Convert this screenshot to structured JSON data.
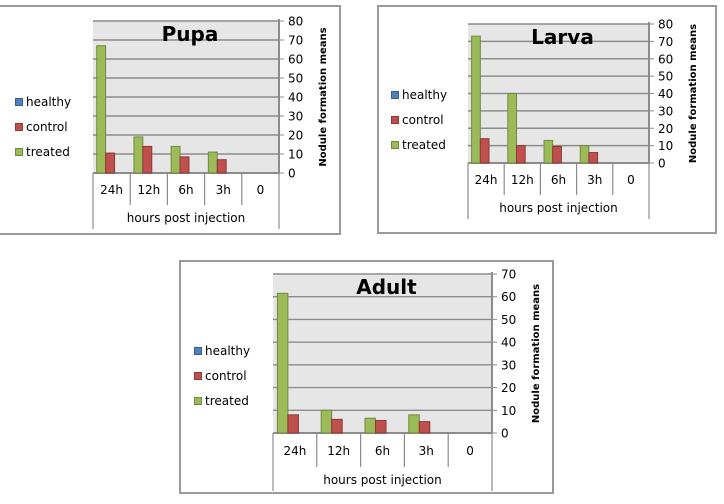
{
  "chart_data": [
    {
      "id": "pupa",
      "type": "bar",
      "title": "Pupa",
      "xlabel": "hours post injection",
      "ylabel": "Nodule formation means",
      "categories": [
        "24h",
        "12h",
        "6h",
        "3h",
        "0"
      ],
      "ylim": [
        0,
        80
      ],
      "yticks": [
        0,
        10,
        20,
        30,
        40,
        50,
        60,
        70,
        80
      ],
      "ytick_labels": [
        "0",
        "10",
        "20",
        "30",
        "40",
        "50",
        "60",
        "70",
        "80"
      ],
      "y_axis_side": "right",
      "grid": true,
      "legend_position": "left",
      "series": [
        {
          "name": "healthy",
          "color": "#4f81bd",
          "values": [
            0,
            0,
            0,
            0,
            0
          ]
        },
        {
          "name": "treated",
          "color": "#9bbb59",
          "values": [
            67,
            19,
            14,
            11,
            0
          ]
        },
        {
          "name": "control",
          "color": "#c0504d",
          "values": [
            10.5,
            14,
            8.5,
            7,
            0
          ]
        }
      ]
    },
    {
      "id": "larva",
      "type": "bar",
      "title": "Larva",
      "xlabel": "hours post injection",
      "ylabel": "Nodule formation means",
      "categories": [
        "24h",
        "12h",
        "6h",
        "3h",
        "0"
      ],
      "ylim": [
        0,
        80
      ],
      "yticks": [
        0,
        10,
        20,
        30,
        40,
        50,
        60,
        70,
        80
      ],
      "ytick_labels": [
        "0",
        "10",
        "20",
        "30",
        "40",
        "50",
        "60",
        "70",
        "80"
      ],
      "y_axis_side": "right",
      "grid": true,
      "legend_position": "left",
      "series": [
        {
          "name": "healthy",
          "color": "#4f81bd",
          "values": [
            0,
            0,
            0,
            0,
            0
          ]
        },
        {
          "name": "treated",
          "color": "#9bbb59",
          "values": [
            73,
            40,
            13,
            10,
            0
          ]
        },
        {
          "name": "control",
          "color": "#c0504d",
          "values": [
            14,
            10,
            9.5,
            6,
            0
          ]
        }
      ]
    },
    {
      "id": "adult",
      "type": "bar",
      "title": "Adult",
      "xlabel": "hours post injection",
      "ylabel": "Nodule formation means",
      "categories": [
        "24h",
        "12h",
        "6h",
        "3h",
        "0"
      ],
      "ylim": [
        0,
        70
      ],
      "yticks": [
        0,
        10,
        20,
        30,
        40,
        50,
        60,
        70
      ],
      "ytick_labels": [
        "0",
        "10",
        "20",
        "30",
        "40",
        "50",
        "60",
        "70"
      ],
      "y_axis_side": "right",
      "grid": true,
      "legend_position": "left",
      "series": [
        {
          "name": "healthy",
          "color": "#4f81bd",
          "values": [
            0,
            0,
            0,
            0,
            0
          ]
        },
        {
          "name": "treated",
          "color": "#9bbb59",
          "values": [
            61.5,
            10,
            6.5,
            8,
            0
          ]
        },
        {
          "name": "control",
          "color": "#c0504d",
          "values": [
            8,
            6,
            5.5,
            5,
            0
          ]
        }
      ]
    }
  ],
  "legend": [
    {
      "label": "healthy",
      "color": "#4f81bd",
      "border": "#385d8a"
    },
    {
      "label": "control",
      "color": "#c0504d",
      "border": "#8c3836"
    },
    {
      "label": "treated",
      "color": "#9bbb59",
      "border": "#71893f"
    }
  ],
  "colors": {
    "plot_background": "#e6e6e6",
    "gridline": "#8c8c8c",
    "axis": "#8c8c8c",
    "panel_border": "#9a9a9a"
  }
}
